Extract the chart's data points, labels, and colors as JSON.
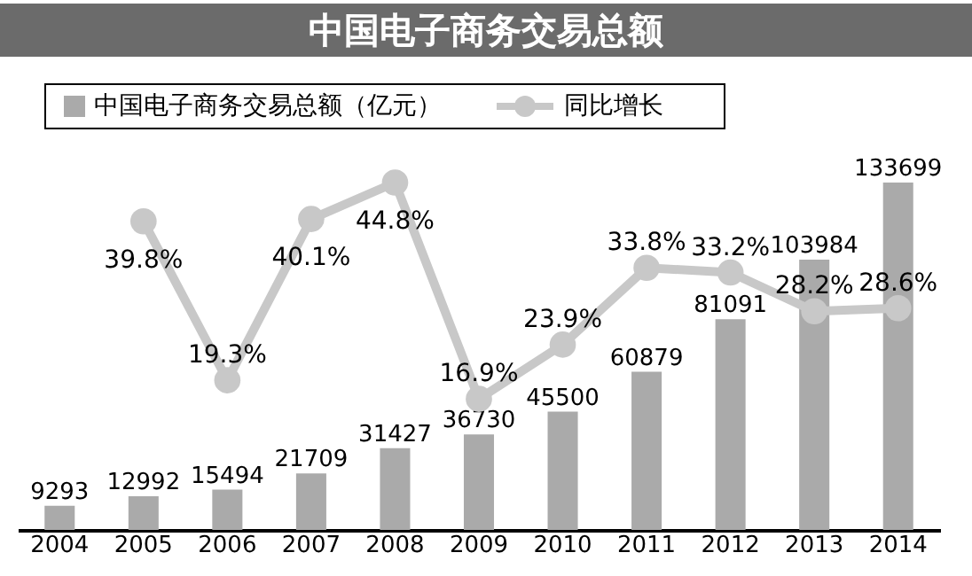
{
  "chart_data": {
    "type": "bar",
    "title": "中国电子商务交易总额",
    "categories": [
      "2004",
      "2005",
      "2006",
      "2007",
      "2008",
      "2009",
      "2010",
      "2011",
      "2012",
      "2013",
      "2014"
    ],
    "series": [
      {
        "name": "中国电子商务交易总额（亿元）",
        "color": "#aaaaaa",
        "values": [
          9293,
          12992,
          15494,
          21709,
          31427,
          36730,
          45500,
          60879,
          81091,
          103984,
          133699
        ]
      },
      {
        "name": "同比增长",
        "type": "line",
        "axis": "y2",
        "color": "#c8c8c8",
        "values": [
          null,
          39.8,
          19.3,
          40.1,
          44.8,
          16.9,
          23.9,
          33.8,
          33.2,
          28.2,
          28.6
        ],
        "value_labels": [
          null,
          "39.8%",
          "19.3%",
          "40.1%",
          "44.8%",
          "16.9%",
          "23.9%",
          "33.8%",
          "33.2%",
          "28.2%",
          "28.6%"
        ]
      }
    ],
    "data_labels": true,
    "legend": "top left",
    "marker": "circle",
    "tick_labels": "x"
  }
}
